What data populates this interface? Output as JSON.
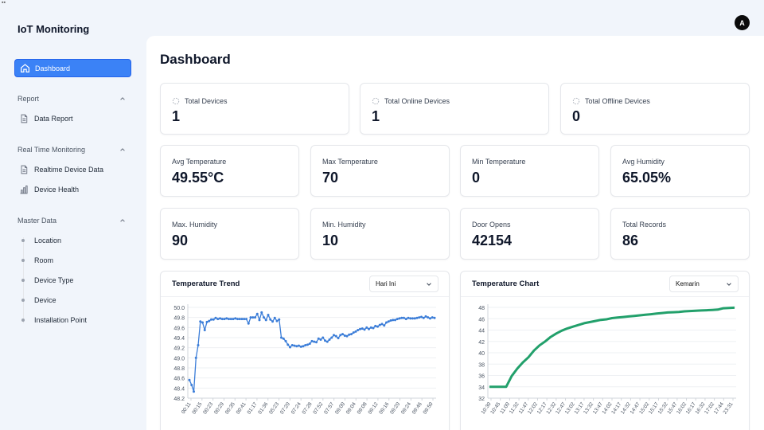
{
  "app": {
    "title": "IoT Monitoring",
    "avatar_initial": "A"
  },
  "sidebar": {
    "active_item": {
      "label": "Dashboard",
      "icon": "home-icon"
    },
    "sections": [
      {
        "title": "Report",
        "items": [
          {
            "label": "Data Report",
            "icon": "file-icon"
          }
        ]
      },
      {
        "title": "Real Time Monitoring",
        "items": [
          {
            "label": "Realtime Device Data",
            "icon": "file-icon"
          },
          {
            "label": "Device Health",
            "icon": "bar-chart-icon"
          }
        ]
      },
      {
        "title": "Master Data",
        "items": [
          {
            "label": "Location"
          },
          {
            "label": "Room"
          },
          {
            "label": "Device Type"
          },
          {
            "label": "Device"
          },
          {
            "label": "Installation Point"
          }
        ]
      }
    ]
  },
  "main": {
    "title": "Dashboard",
    "device_stats": [
      {
        "label": "Total Devices",
        "value": "1"
      },
      {
        "label": "Total Online Devices",
        "value": "1"
      },
      {
        "label": "Total Offline Devices",
        "value": "0"
      }
    ],
    "sensor_stats": [
      {
        "label": "Avg Temperature",
        "value": "49.55°C"
      },
      {
        "label": "Max Temperature",
        "value": "70"
      },
      {
        "label": "Min Temperature",
        "value": "0"
      },
      {
        "label": "Avg Humidity",
        "value": "65.05%"
      },
      {
        "label": "Max. Humidity",
        "value": "90"
      },
      {
        "label": "Min. Humidity",
        "value": "10"
      },
      {
        "label": "Door Opens",
        "value": "42154"
      },
      {
        "label": "Total Records",
        "value": "86"
      }
    ],
    "trend_card": {
      "title": "Temperature Trend",
      "period": "Hari Ini"
    },
    "chart_card": {
      "title": "Temperature Chart",
      "period": "Kemarin"
    }
  },
  "chart_data": [
    {
      "type": "line",
      "title": "Temperature Trend",
      "ylim": [
        48.2,
        50.0
      ],
      "yticks": [
        50.0,
        49.8,
        49.6,
        49.4,
        49.2,
        49.0,
        48.8,
        48.6,
        48.4,
        48.2
      ],
      "xtick_labels": [
        "00:11",
        "00:15",
        "00:23",
        "00:29",
        "00:35",
        "00:41",
        "01:17",
        "01:36",
        "05:23",
        "07:20",
        "07:24",
        "07:28",
        "07:52",
        "07:57",
        "09:00",
        "09:04",
        "09:08",
        "09:12",
        "09:16",
        "09:20",
        "09:24",
        "09:46",
        "09:50"
      ],
      "grid": true,
      "color": "#3b7dd8",
      "series": [
        {
          "values": [
            48.56,
            48.46,
            48.33,
            49.0,
            49.25,
            49.72,
            49.7,
            49.55,
            49.71,
            49.73,
            49.76,
            49.76,
            49.79,
            49.77,
            49.78,
            49.77,
            49.77,
            49.78,
            49.77,
            49.77,
            49.77,
            49.78,
            49.77,
            49.77,
            49.77,
            49.77,
            49.77,
            49.68,
            49.8,
            49.8,
            49.8,
            49.87,
            49.75,
            49.9,
            49.8,
            49.75,
            49.85,
            49.76,
            49.72,
            49.79,
            49.73,
            49.76,
            49.4,
            49.38,
            49.33,
            49.26,
            49.21,
            49.25,
            49.24,
            49.23,
            49.24,
            49.22,
            49.23,
            49.25,
            49.26,
            49.28,
            49.33,
            49.32,
            49.31,
            49.38,
            49.36,
            49.4,
            49.34,
            49.32,
            49.36,
            49.4,
            49.45,
            49.43,
            49.39,
            49.45,
            49.47,
            49.44,
            49.43,
            49.46,
            49.47,
            49.5,
            49.52,
            49.55,
            49.57,
            49.58,
            49.56,
            49.6,
            49.57,
            49.6,
            49.59,
            49.63,
            49.62,
            49.65,
            49.67,
            49.64,
            49.7,
            49.72,
            49.74,
            49.75,
            49.75,
            49.77,
            49.78,
            49.79,
            49.79,
            49.77,
            49.79,
            49.78,
            49.78,
            49.78,
            49.79,
            49.8,
            49.81,
            49.79,
            49.82,
            49.8,
            49.78,
            49.8,
            49.79
          ]
        }
      ]
    },
    {
      "type": "line",
      "title": "Temperature Chart",
      "ylim": [
        32,
        48
      ],
      "yticks": [
        48,
        46,
        44,
        42,
        40,
        38,
        36,
        34,
        32
      ],
      "xtick_labels": [
        "10:30",
        "10:45",
        "11:00",
        "11:32",
        "11:47",
        "12:02",
        "12:17",
        "12:32",
        "12:47",
        "13:02",
        "13:17",
        "13:32",
        "13:47",
        "14:02",
        "14:17",
        "14:32",
        "14:47",
        "15:02",
        "15:17",
        "15:32",
        "15:47",
        "16:02",
        "16:17",
        "16:32",
        "17:02",
        "17:44",
        "23:31"
      ],
      "grid": true,
      "color": "#22a06b",
      "series": [
        {
          "values": [
            34,
            34,
            34,
            34,
            35.9,
            37.2,
            38.3,
            39.2,
            40.4,
            41.3,
            42.0,
            42.8,
            43.4,
            43.9,
            44.3,
            44.6,
            44.9,
            45.2,
            45.4,
            45.6,
            45.8,
            45.9,
            46.1,
            46.2,
            46.3,
            46.4,
            46.5,
            46.6,
            46.7,
            46.8,
            46.9,
            47.0,
            47.1,
            47.15,
            47.2,
            47.3,
            47.35,
            47.4,
            47.45,
            47.5,
            47.55,
            47.6,
            47.85,
            47.9,
            47.95
          ]
        }
      ]
    }
  ]
}
